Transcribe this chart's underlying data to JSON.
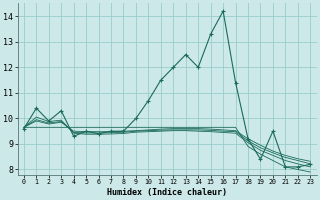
{
  "xlabel": "Humidex (Indice chaleur)",
  "ylabel": "",
  "background_color": "#cce8e8",
  "grid_color": "#99cccc",
  "line_color": "#1a6b5a",
  "marker_color": "#1a6b5a",
  "xlim": [
    -0.5,
    23.5
  ],
  "ylim": [
    7.8,
    14.5
  ],
  "yticks": [
    8,
    9,
    10,
    11,
    12,
    13,
    14
  ],
  "xticks": [
    0,
    1,
    2,
    3,
    4,
    5,
    6,
    7,
    8,
    9,
    10,
    11,
    12,
    13,
    14,
    15,
    16,
    17,
    18,
    19,
    20,
    21,
    22,
    23
  ],
  "main_series": [
    9.6,
    10.4,
    9.9,
    10.3,
    9.3,
    9.5,
    9.4,
    9.5,
    9.5,
    10.0,
    10.7,
    11.5,
    12.0,
    12.5,
    12.0,
    13.3,
    14.2,
    11.4,
    9.2,
    8.4,
    9.5,
    8.1,
    8.1,
    8.2
  ],
  "ref_lines": [
    [
      9.65,
      9.65,
      9.65,
      9.65,
      9.65,
      9.65,
      9.65,
      9.65,
      9.65,
      9.65,
      9.65,
      9.65,
      9.65,
      9.65,
      9.65,
      9.65,
      9.65,
      9.65,
      8.9,
      8.6,
      8.35,
      8.1,
      8.0,
      7.9
    ],
    [
      9.65,
      9.9,
      9.78,
      9.85,
      9.5,
      9.48,
      9.48,
      9.48,
      9.5,
      9.52,
      9.55,
      9.58,
      9.6,
      9.6,
      9.6,
      9.58,
      9.55,
      9.52,
      9.2,
      8.95,
      8.72,
      8.55,
      8.42,
      8.32
    ],
    [
      9.65,
      9.95,
      9.82,
      9.88,
      9.45,
      9.43,
      9.43,
      9.44,
      9.46,
      9.5,
      9.52,
      9.54,
      9.55,
      9.55,
      9.55,
      9.53,
      9.5,
      9.48,
      9.12,
      8.85,
      8.65,
      8.47,
      8.35,
      8.22
    ],
    [
      9.65,
      10.05,
      9.88,
      9.93,
      9.42,
      9.38,
      9.38,
      9.39,
      9.41,
      9.46,
      9.48,
      9.5,
      9.52,
      9.52,
      9.5,
      9.48,
      9.45,
      9.42,
      9.05,
      8.75,
      8.55,
      8.35,
      8.22,
      8.1
    ]
  ]
}
